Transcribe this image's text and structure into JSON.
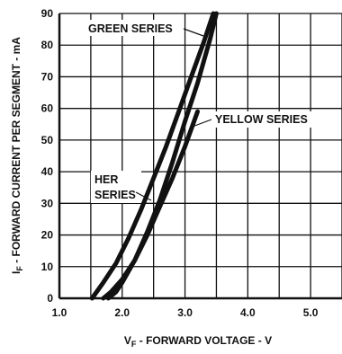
{
  "chart_data": {
    "type": "line",
    "xlabel_main": "V",
    "xlabel_sub": "F",
    "xlabel_rest": " - FORWARD VOLTAGE - V",
    "ylabel_main": "I",
    "ylabel_sub": "F",
    "ylabel_rest": " - FORWARD CURRENT PER SEGMENT - mA",
    "xlim": [
      1.0,
      5.5
    ],
    "ylim": [
      0,
      90
    ],
    "x_ticks": [
      "1.0",
      "2.0",
      "3.0",
      "4.0",
      "5.0"
    ],
    "y_ticks": [
      "0",
      "10",
      "20",
      "30",
      "40",
      "50",
      "60",
      "70",
      "80",
      "90"
    ],
    "grid": true,
    "series": [
      {
        "name": "GREEN SERIES",
        "points": [
          [
            1.78,
            0
          ],
          [
            1.9,
            2
          ],
          [
            2.0,
            5
          ],
          [
            2.2,
            12
          ],
          [
            2.4,
            21
          ],
          [
            2.6,
            31
          ],
          [
            2.8,
            43
          ],
          [
            3.0,
            56
          ],
          [
            3.2,
            68
          ],
          [
            3.4,
            82
          ],
          [
            3.5,
            90
          ]
        ]
      },
      {
        "name": "YELLOW SERIES",
        "points": [
          [
            1.7,
            0
          ],
          [
            1.82,
            2
          ],
          [
            2.0,
            6
          ],
          [
            2.2,
            12
          ],
          [
            2.4,
            20
          ],
          [
            2.6,
            29
          ],
          [
            2.8,
            38
          ],
          [
            3.0,
            48
          ],
          [
            3.2,
            59
          ]
        ]
      },
      {
        "name": "HER SERIES",
        "points": [
          [
            1.52,
            0
          ],
          [
            1.7,
            5
          ],
          [
            1.9,
            11
          ],
          [
            2.1,
            19
          ],
          [
            2.3,
            28
          ],
          [
            2.5,
            38
          ],
          [
            2.7,
            48
          ],
          [
            2.9,
            59
          ],
          [
            3.1,
            70
          ],
          [
            3.3,
            81
          ],
          [
            3.45,
            90
          ]
        ]
      }
    ],
    "labels": {
      "green": "GREEN SERIES",
      "yellow": "YELLOW SERIES",
      "her_line1": "HER",
      "her_line2": "SERIES"
    }
  }
}
